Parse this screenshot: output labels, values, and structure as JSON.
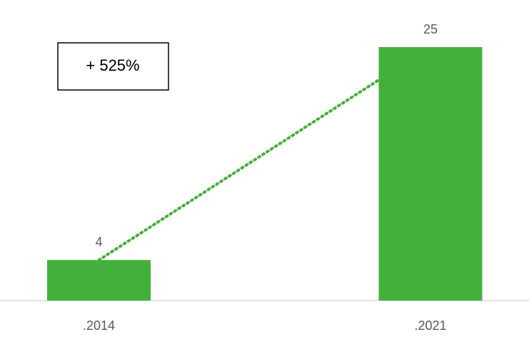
{
  "chart_data": {
    "type": "bar",
    "categories": [
      ".2014",
      ".2021"
    ],
    "values": [
      4,
      25
    ],
    "color": "#43b03a",
    "annotation": "+ 525%"
  }
}
